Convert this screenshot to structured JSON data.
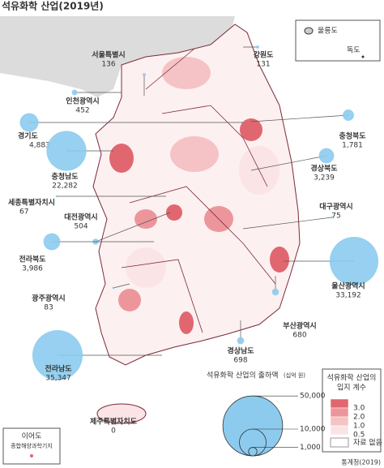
{
  "title": "석유화학 산업(2019년)",
  "regions": [
    {
      "name": "서울특별시",
      "value": 136
    },
    {
      "name": "강원도",
      "value": 131
    },
    {
      "name": "인천광역시",
      "value": 452
    },
    {
      "name": "경기도",
      "value": 4883,
      "value_label": "4,883"
    },
    {
      "name": "충청북도",
      "value": 1781,
      "value_label": "1,781"
    },
    {
      "name": "충청남도",
      "value": 22282,
      "value_label": "22,282"
    },
    {
      "name": "경상북도",
      "value": 3239,
      "value_label": "3,239"
    },
    {
      "name": "세종특별자치시",
      "value": 67
    },
    {
      "name": "대전광역시",
      "value": 504
    },
    {
      "name": "대구광역시",
      "value": 75
    },
    {
      "name": "전라북도",
      "value": 3986,
      "value_label": "3,986"
    },
    {
      "name": "울산광역시",
      "value": 33192,
      "value_label": "33,192"
    },
    {
      "name": "광주광역시",
      "value": 83
    },
    {
      "name": "부산광역시",
      "value": 680
    },
    {
      "name": "경상남도",
      "value": 698
    },
    {
      "name": "전라남도",
      "value": 35347,
      "value_label": "35,347"
    },
    {
      "name": "제주특별자치도",
      "value": 0
    }
  ],
  "bubble_legend": {
    "title": "석유화학 산업의 출하액",
    "unit": "(십억 원)",
    "sizes": [
      {
        "value": 50000,
        "label": "50,000"
      },
      {
        "value": 10000,
        "label": "10,000"
      },
      {
        "value": 1000,
        "label": "1,000"
      }
    ]
  },
  "lq_legend": {
    "title": [
      "석유화학 산업의",
      "입지 계수"
    ],
    "items": [
      {
        "value": 3,
        "label": "3.0",
        "color": "#e0676f"
      },
      {
        "value": 2,
        "label": "2.0",
        "color": "#ec969b"
      },
      {
        "value": 1,
        "label": "1.0",
        "color": "#f5c3c5"
      },
      {
        "value": 0.5,
        "label": "0.5",
        "color": "#fbe4e5"
      }
    ],
    "no_data": "자료 없음"
  },
  "inset": {
    "ulleung": "울릉도",
    "dokdo": "독도"
  },
  "ieodo": {
    "name": "이어도",
    "station": "종합해양과학기지"
  },
  "source": "통계청(2019)"
}
